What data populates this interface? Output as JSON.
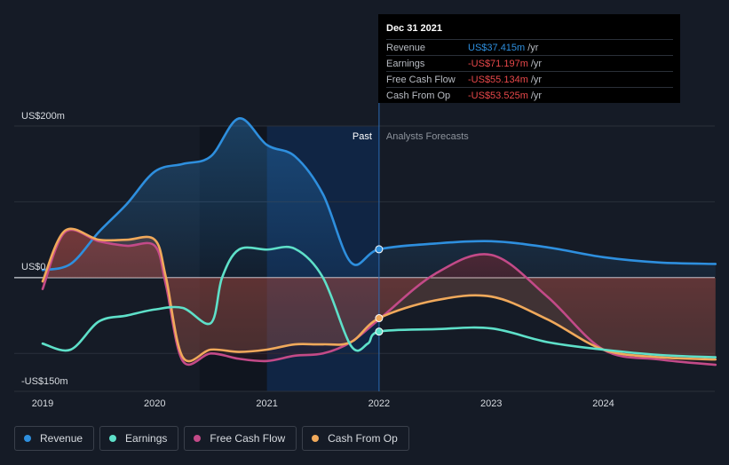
{
  "chart_data": {
    "type": "line",
    "x_ticks": [
      "2019",
      "2020",
      "2021",
      "2022",
      "2023",
      "2024"
    ],
    "y_ticks": [
      "US$200m",
      "US$0",
      "-US$150m"
    ],
    "ylim": [
      -150,
      200
    ],
    "past_label": "Past",
    "forecast_label": "Analysts Forecasts",
    "divider_x": 2022.0,
    "colors": {
      "Revenue": "#2e8fde",
      "Earnings": "#5ee0c9",
      "Free Cash Flow": "#c34a88",
      "Cash From Op": "#f0a95b"
    },
    "series": [
      {
        "name": "Revenue",
        "x": [
          2019.0,
          2019.25,
          2019.5,
          2019.75,
          2020.0,
          2020.25,
          2020.5,
          2020.75,
          2021.0,
          2021.25,
          2021.5,
          2021.75,
          2022.0,
          2022.5,
          2023.0,
          2023.5,
          2024.0,
          2024.5,
          2025.0
        ],
        "y": [
          10,
          18,
          60,
          97,
          140,
          150,
          160,
          210,
          175,
          160,
          110,
          20,
          37.4,
          45,
          48,
          40,
          27,
          20,
          18
        ]
      },
      {
        "name": "Earnings",
        "x": [
          2019.0,
          2019.25,
          2019.5,
          2019.75,
          2020.0,
          2020.25,
          2020.5,
          2020.6,
          2020.75,
          2021.0,
          2021.25,
          2021.5,
          2021.75,
          2021.9,
          2022.0,
          2022.5,
          2023.0,
          2023.5,
          2024.0,
          2024.5,
          2025.0
        ],
        "y": [
          -87,
          -95,
          -58,
          -50,
          -42,
          -40,
          -60,
          0,
          37,
          37,
          38,
          0,
          -90,
          -87,
          -71.2,
          -68,
          -67,
          -85,
          -95,
          -102,
          -105
        ]
      },
      {
        "name": "Free Cash Flow",
        "x": [
          2019.0,
          2019.2,
          2019.5,
          2019.75,
          2020.0,
          2020.1,
          2020.25,
          2020.5,
          2020.75,
          2021.0,
          2021.25,
          2021.5,
          2021.75,
          2022.0,
          2022.5,
          2023.0,
          2023.5,
          2024.0,
          2024.5,
          2025.0
        ],
        "y": [
          -15,
          60,
          48,
          42,
          42,
          -10,
          -110,
          -100,
          -107,
          -110,
          -103,
          -100,
          -85,
          -55.1,
          5,
          30,
          -25,
          -95,
          -108,
          -115
        ]
      },
      {
        "name": "Cash From Op",
        "x": [
          2019.0,
          2019.2,
          2019.5,
          2019.75,
          2020.0,
          2020.1,
          2020.25,
          2020.5,
          2020.75,
          2021.0,
          2021.25,
          2021.5,
          2021.75,
          2022.0,
          2022.5,
          2023.0,
          2023.5,
          2024.0,
          2024.5,
          2025.0
        ],
        "y": [
          -5,
          62,
          50,
          50,
          50,
          0,
          -105,
          -95,
          -98,
          -95,
          -88,
          -88,
          -85,
          -53.5,
          -30,
          -25,
          -55,
          -95,
          -105,
          -108
        ]
      }
    ],
    "highlight_x": 2022.0
  },
  "tooltip": {
    "date": "Dec 31 2021",
    "rows": [
      {
        "label": "Revenue",
        "value": "US$37.415m",
        "unit": "/yr",
        "color": "#2e8fde"
      },
      {
        "label": "Earnings",
        "value": "-US$71.197m",
        "unit": "/yr",
        "color": "#e8484a"
      },
      {
        "label": "Free Cash Flow",
        "value": "-US$55.134m",
        "unit": "/yr",
        "color": "#e8484a"
      },
      {
        "label": "Cash From Op",
        "value": "-US$53.525m",
        "unit": "/yr",
        "color": "#e8484a"
      }
    ]
  },
  "legend": [
    {
      "label": "Revenue",
      "color": "#2e8fde"
    },
    {
      "label": "Earnings",
      "color": "#5ee0c9"
    },
    {
      "label": "Free Cash Flow",
      "color": "#c34a88"
    },
    {
      "label": "Cash From Op",
      "color": "#f0a95b"
    }
  ]
}
